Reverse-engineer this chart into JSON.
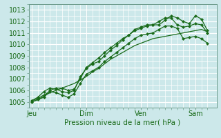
{
  "xlabel": "Pression niveau de la mer( hPa )",
  "bg_color": "#cce8ea",
  "grid_major_color": "#ffffff",
  "grid_minor_color": "#ddeef0",
  "line_color": "#1a6b1a",
  "ylim": [
    1004.5,
    1013.5
  ],
  "yticks": [
    1005,
    1006,
    1007,
    1008,
    1009,
    1010,
    1011,
    1012,
    1013
  ],
  "xtick_labels": [
    "Jeu",
    "Dim",
    "Ven",
    "Sam"
  ],
  "xtick_positions": [
    0,
    9,
    18,
    27
  ],
  "xlim": [
    -0.5,
    30.5
  ],
  "series1_x": [
    0,
    1,
    2,
    3,
    4,
    5,
    6,
    7,
    8,
    9,
    10,
    11,
    12,
    13,
    14,
    15,
    16,
    17,
    18,
    19,
    20,
    21,
    22,
    23,
    24,
    25,
    26,
    27,
    28,
    29
  ],
  "series1_y": [
    1005.0,
    1005.2,
    1005.4,
    1006.0,
    1006.2,
    1006.2,
    1006.0,
    1006.1,
    1007.0,
    1008.0,
    1008.4,
    1008.8,
    1009.3,
    1009.7,
    1010.1,
    1010.5,
    1010.8,
    1011.3,
    1011.5,
    1011.7,
    1011.7,
    1011.7,
    1012.1,
    1012.5,
    1012.3,
    1012.0,
    1011.8,
    1012.5,
    1012.2,
    1011.2
  ],
  "series2_x": [
    0,
    1,
    2,
    3,
    4,
    5,
    6,
    7,
    8,
    9,
    10,
    11,
    12,
    13,
    14,
    15,
    16,
    17,
    18,
    19,
    20,
    21,
    22,
    23,
    24,
    25,
    26,
    27,
    28,
    29
  ],
  "series2_y": [
    1005.1,
    1005.4,
    1005.9,
    1006.2,
    1006.1,
    1005.9,
    1005.8,
    1006.0,
    1007.2,
    1007.9,
    1008.3,
    1008.5,
    1009.0,
    1009.5,
    1009.9,
    1010.4,
    1010.8,
    1011.2,
    1011.4,
    1011.6,
    1011.7,
    1012.0,
    1012.3,
    1012.3,
    1011.7,
    1011.5,
    1011.6,
    1011.8,
    1011.7,
    1011.0
  ],
  "series3_x": [
    0,
    1,
    2,
    3,
    4,
    5,
    6,
    7,
    8,
    9,
    10,
    11,
    12,
    13,
    14,
    15,
    16,
    17,
    18,
    19,
    20,
    21,
    22,
    23,
    24,
    25,
    26,
    27,
    28,
    29
  ],
  "series3_y": [
    1005.1,
    1005.3,
    1005.6,
    1005.9,
    1005.8,
    1005.6,
    1005.4,
    1005.7,
    1006.6,
    1007.4,
    1007.7,
    1008.0,
    1008.5,
    1008.9,
    1009.3,
    1009.7,
    1010.1,
    1010.5,
    1010.8,
    1010.9,
    1011.0,
    1011.3,
    1011.6,
    1011.6,
    1011.4,
    1010.5,
    1010.6,
    1010.7,
    1010.5,
    1010.1
  ],
  "series4_x": [
    0,
    1,
    2,
    3,
    4,
    5,
    6,
    7,
    8,
    9,
    10,
    11,
    12,
    13,
    14,
    15,
    16,
    17,
    18,
    19,
    20,
    21,
    22,
    23,
    24,
    25,
    26,
    27,
    28,
    29
  ],
  "series4_y": [
    1005.0,
    1005.2,
    1005.5,
    1005.8,
    1006.0,
    1006.2,
    1006.4,
    1006.6,
    1006.9,
    1007.2,
    1007.6,
    1007.9,
    1008.3,
    1008.7,
    1009.0,
    1009.3,
    1009.6,
    1009.9,
    1010.1,
    1010.3,
    1010.5,
    1010.6,
    1010.7,
    1010.8,
    1010.9,
    1011.0,
    1011.1,
    1011.2,
    1011.3,
    1011.1
  ]
}
